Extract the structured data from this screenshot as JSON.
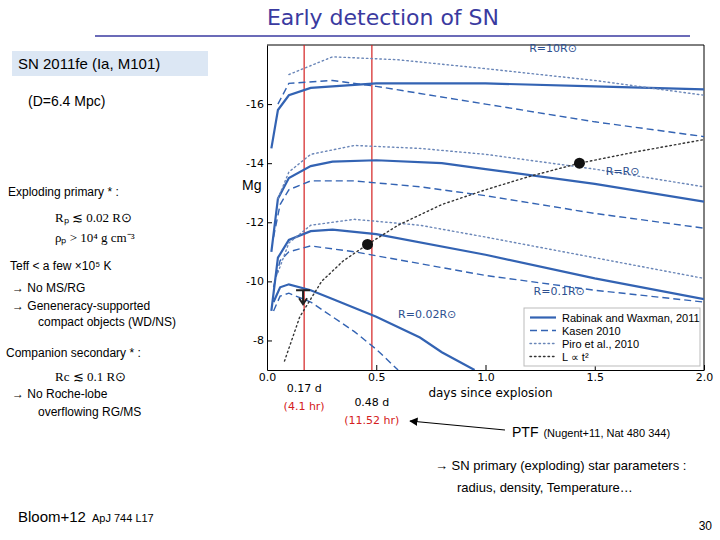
{
  "chart_data": {
    "type": "line",
    "xlabel": "days since explosion",
    "ylabel": "Mg",
    "xlim": [
      0,
      2
    ],
    "ylim": [
      -18,
      -7
    ],
    "xticks": [
      {
        "value": 0,
        "label": "0.0"
      },
      0.5,
      {
        "value": 1,
        "label": "1.0"
      },
      1.5,
      {
        "value": 2,
        "label": "2.0"
      }
    ],
    "yticks": [
      -16,
      -14,
      -12,
      -10,
      -8
    ],
    "legend": "lower right",
    "series": [
      {
        "name": "Rabinak and Waxman, 2011",
        "color": "#3363b3",
        "line_style": "solid",
        "x": [
          0.02,
          0.05,
          0.1,
          0.2,
          0.5,
          1.0,
          1.5,
          2.0
        ],
        "values": [
          -14.5,
          -15.8,
          -16.3,
          -16.55,
          -16.7,
          -16.7,
          -16.6,
          -16.5
        ]
      },
      {
        "name": "Rabinak and Waxman, 2011",
        "color": "#3363b3",
        "line_style": "solid",
        "x": [
          0.02,
          0.05,
          0.1,
          0.2,
          0.3,
          0.5,
          0.8,
          1.0,
          1.5,
          2.0
        ],
        "values": [
          -11.0,
          -12.8,
          -13.5,
          -13.9,
          -14.05,
          -14.1,
          -14.0,
          -13.8,
          -13.3,
          -12.7
        ]
      },
      {
        "name": "Rabinak and Waxman, 2011",
        "color": "#3363b3",
        "line_style": "solid",
        "x": [
          0.02,
          0.05,
          0.1,
          0.2,
          0.3,
          0.5,
          1.0,
          1.5,
          2.0
        ],
        "values": [
          -9.0,
          -10.8,
          -11.4,
          -11.7,
          -11.75,
          -11.6,
          -10.9,
          -10.1,
          -9.4
        ]
      },
      {
        "name": "Rabinak and Waxman, 2011",
        "color": "#3363b3",
        "line_style": "solid",
        "x": [
          0.03,
          0.06,
          0.1,
          0.2,
          0.3,
          0.5,
          0.7,
          0.8,
          0.95
        ],
        "values": [
          -9.3,
          -9.8,
          -9.9,
          -9.7,
          -9.4,
          -8.8,
          -8.1,
          -7.6,
          -7.0
        ]
      },
      {
        "name": "Kasen 2010",
        "color": "#3363b3",
        "line_style": "dashed",
        "x": [
          0.05,
          0.1,
          0.3,
          0.5,
          1.0,
          1.5,
          2.0
        ],
        "values": [
          -16.0,
          -16.7,
          -16.8,
          -16.6,
          -16.0,
          -15.4,
          -14.9
        ]
      },
      {
        "name": "Kasen 2010",
        "color": "#3363b3",
        "line_style": "dashed",
        "x": [
          0.03,
          0.06,
          0.1,
          0.2,
          0.4,
          0.7,
          1.0,
          1.5,
          2.0
        ],
        "values": [
          -11.5,
          -12.6,
          -13.1,
          -13.4,
          -13.4,
          -13.2,
          -12.9,
          -12.3,
          -11.8
        ]
      },
      {
        "name": "Kasen 2010",
        "color": "#3363b3",
        "line_style": "dashed",
        "x": [
          0.03,
          0.06,
          0.1,
          0.2,
          0.4,
          0.7,
          1.0,
          1.5,
          2.0
        ],
        "values": [
          -9.8,
          -10.7,
          -11.0,
          -11.2,
          -11.0,
          -10.6,
          -10.2,
          -9.7,
          -9.3
        ]
      },
      {
        "name": "Kasen 2010",
        "color": "#3363b3",
        "line_style": "dashed",
        "x": [
          0.03,
          0.06,
          0.1,
          0.2,
          0.3,
          0.4,
          0.5,
          0.6
        ],
        "values": [
          -9.0,
          -9.5,
          -9.6,
          -9.3,
          -8.8,
          -8.3,
          -7.7,
          -7.0
        ]
      },
      {
        "name": "Piro et al., 2010",
        "color": "#6a86b8",
        "line_style": "dotted",
        "x": [
          0.1,
          0.3,
          0.6,
          1.0,
          1.5,
          2.0
        ],
        "values": [
          -17.0,
          -17.6,
          -17.5,
          -17.2,
          -16.8,
          -16.3
        ]
      },
      {
        "name": "Piro et al., 2010",
        "color": "#6a86b8",
        "line_style": "dotted",
        "x": [
          0.05,
          0.1,
          0.2,
          0.4,
          0.7,
          1.0,
          1.5,
          2.0
        ],
        "values": [
          -12.8,
          -13.7,
          -14.3,
          -14.6,
          -14.5,
          -14.3,
          -13.8,
          -13.2
        ]
      },
      {
        "name": "Piro et al., 2010",
        "color": "#6a86b8",
        "line_style": "dotted",
        "x": [
          0.05,
          0.1,
          0.2,
          0.4,
          0.7,
          1.0,
          1.5,
          2.0
        ],
        "values": [
          -10.3,
          -11.3,
          -11.9,
          -12.1,
          -11.9,
          -11.5,
          -10.8,
          -10.1
        ]
      },
      {
        "name": "L ∝ t²",
        "color": "#333333",
        "line_style": "dotted",
        "x": [
          0.08,
          0.15,
          0.25,
          0.35,
          0.46,
          0.6,
          0.8,
          1.0,
          1.2,
          1.43,
          1.7,
          2.0
        ],
        "values": [
          -7.3,
          -8.8,
          -10.0,
          -10.7,
          -11.25,
          -11.9,
          -12.6,
          -13.1,
          -13.55,
          -14.0,
          -14.4,
          -14.8
        ]
      },
      {
        "type": "scatter",
        "marker": "circle",
        "color": "#111111",
        "x": [
          0.46,
          1.43
        ],
        "values": [
          -11.25,
          -14.0
        ]
      },
      {
        "type": "scatter",
        "marker": "arrow_down",
        "color": "#222222",
        "x": [
          0.165
        ],
        "values": [
          -9.7
        ]
      }
    ],
    "vlines": [
      {
        "x": 0.17,
        "label": "0.17 d",
        "note": "(4.1 hr)",
        "color": "#d42020"
      },
      {
        "x": 0.48,
        "label": "0.48 d",
        "note": "(11.52 hr)",
        "color": "#d42020"
      }
    ],
    "annotations": [
      {
        "text": "R=10R⊙",
        "x": 1.2,
        "y": -17.75
      },
      {
        "text": "R=R⊙",
        "x": 1.55,
        "y": -13.6
      },
      {
        "text": "R=0.1R⊙",
        "x": 1.22,
        "y": -9.55
      },
      {
        "text": "R=0.02R⊙",
        "x": 0.6,
        "y": -8.75
      }
    ]
  },
  "slide": {
    "title": "Early detection of SN",
    "sn_box": "SN 2011fe (Ia, M101)",
    "distance": "(D=6.4 Mpc)",
    "primary_heading": "Exploding primary * :",
    "primary_limits": [
      "Rₚ ≲ 0.02 R⊙",
      "ρₚ > 10⁴ g cm⁻³"
    ],
    "temperature": "Teff < a few ×10⁵ K",
    "primary_notes": [
      "→ No MS/RG",
      "→ Geneneracy-supported",
      "compact objects (WD/NS)"
    ],
    "secondary_heading": "Companion secondary * :",
    "secondary_limit": "Rc ≲ 0.1 R⊙",
    "secondary_notes": [
      "→ No Roche-lobe",
      "overflowing RG/MS"
    ],
    "ptf": "PTF",
    "ptf_ref": "(Nugent+11, Nat 480 344)",
    "conclusion": [
      "→ SN primary (exploding) star parameters :",
      "radius, density, Temperature…"
    ],
    "reference": "Bloom+12",
    "reference_journal": "ApJ 744 L17",
    "page": "30"
  }
}
